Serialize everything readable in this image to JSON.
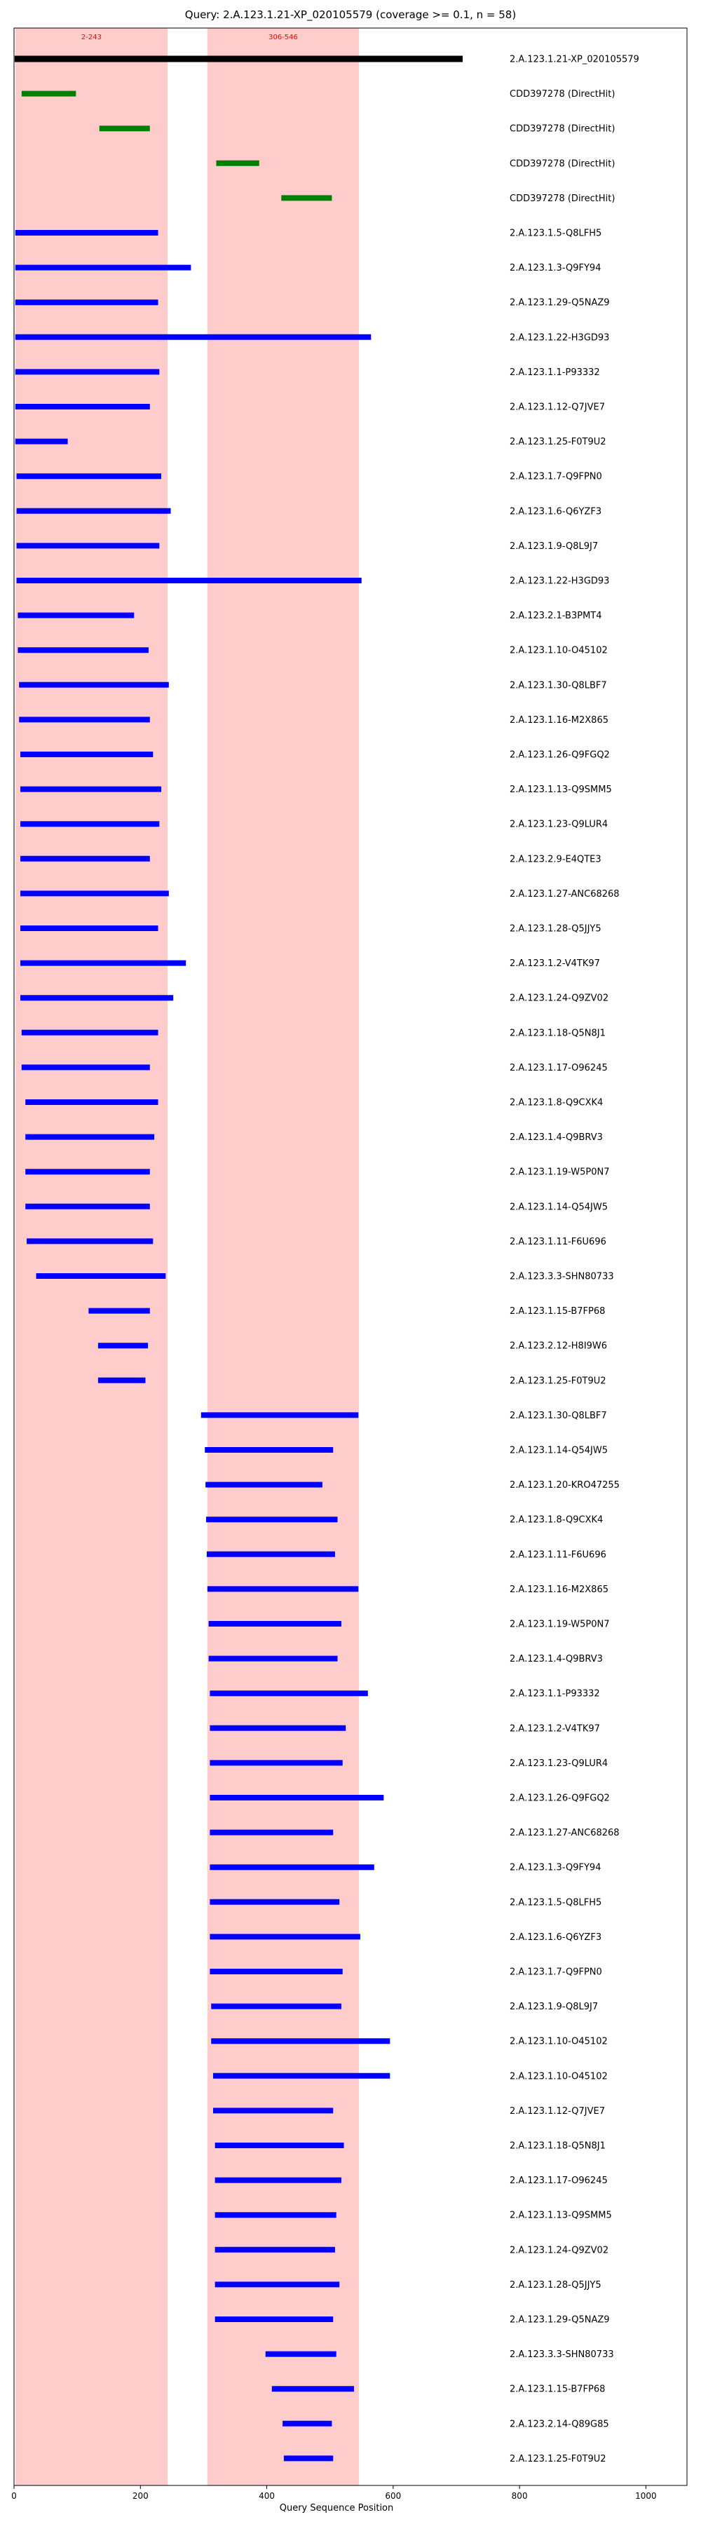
{
  "chart_data": {
    "type": "bar",
    "title": "Query: 2.A.123.1.21-XP_020105579 (coverage >= 0.1, n = 58)",
    "xlabel": "Query Sequence Position",
    "ylabel": "",
    "xlim": [
      0,
      1065
    ],
    "xticks": [
      0,
      200,
      400,
      600,
      800,
      1000
    ],
    "grid": false,
    "regions": [
      {
        "label": "2-243",
        "start": 2,
        "end": 243,
        "color": "#ffcccc",
        "label_color": "#ff0000"
      },
      {
        "label": "306-546",
        "start": 306,
        "end": 546,
        "color": "#ffcccc",
        "label_color": "#ff0000"
      }
    ],
    "colors": {
      "query": "#000000",
      "cdd": "#008000",
      "hit": "#0000ff"
    },
    "rows": [
      {
        "label": "2.A.123.1.21-XP_020105579",
        "start": 1,
        "end": 710,
        "kind": "query"
      },
      {
        "label": "CDD397278 (DirectHit)",
        "start": 12,
        "end": 98,
        "kind": "cdd"
      },
      {
        "label": "CDD397278 (DirectHit)",
        "start": 135,
        "end": 215,
        "kind": "cdd"
      },
      {
        "label": "CDD397278 (DirectHit)",
        "start": 320,
        "end": 388,
        "kind": "cdd"
      },
      {
        "label": "CDD397278 (DirectHit)",
        "start": 423,
        "end": 503,
        "kind": "cdd"
      },
      {
        "label": "2.A.123.1.5-Q8LFH5",
        "start": 2,
        "end": 228,
        "kind": "hit"
      },
      {
        "label": "2.A.123.1.3-Q9FY94",
        "start": 2,
        "end": 280,
        "kind": "hit"
      },
      {
        "label": "2.A.123.1.29-Q5NAZ9",
        "start": 2,
        "end": 228,
        "kind": "hit"
      },
      {
        "label": "2.A.123.1.22-H3GD93",
        "start": 2,
        "end": 565,
        "kind": "hit"
      },
      {
        "label": "2.A.123.1.1-P93332",
        "start": 2,
        "end": 230,
        "kind": "hit"
      },
      {
        "label": "2.A.123.1.12-Q7JVE7",
        "start": 2,
        "end": 215,
        "kind": "hit"
      },
      {
        "label": "2.A.123.1.25-F0T9U2",
        "start": 2,
        "end": 85,
        "kind": "hit"
      },
      {
        "label": "2.A.123.1.7-Q9FPN0",
        "start": 4,
        "end": 233,
        "kind": "hit"
      },
      {
        "label": "2.A.123.1.6-Q6YZF3",
        "start": 4,
        "end": 248,
        "kind": "hit"
      },
      {
        "label": "2.A.123.1.9-Q8L9J7",
        "start": 4,
        "end": 230,
        "kind": "hit"
      },
      {
        "label": "2.A.123.1.22-H3GD93",
        "start": 4,
        "end": 550,
        "kind": "hit"
      },
      {
        "label": "2.A.123.2.1-B3PMT4",
        "start": 6,
        "end": 190,
        "kind": "hit"
      },
      {
        "label": "2.A.123.1.10-O45102",
        "start": 6,
        "end": 213,
        "kind": "hit"
      },
      {
        "label": "2.A.123.1.30-Q8LBF7",
        "start": 8,
        "end": 245,
        "kind": "hit"
      },
      {
        "label": "2.A.123.1.16-M2X865",
        "start": 8,
        "end": 215,
        "kind": "hit"
      },
      {
        "label": "2.A.123.1.26-Q9FGQ2",
        "start": 10,
        "end": 220,
        "kind": "hit"
      },
      {
        "label": "2.A.123.1.13-Q9SMM5",
        "start": 10,
        "end": 233,
        "kind": "hit"
      },
      {
        "label": "2.A.123.1.23-Q9LUR4",
        "start": 10,
        "end": 230,
        "kind": "hit"
      },
      {
        "label": "2.A.123.2.9-E4QTE3",
        "start": 10,
        "end": 215,
        "kind": "hit"
      },
      {
        "label": "2.A.123.1.27-ANC68268",
        "start": 10,
        "end": 245,
        "kind": "hit"
      },
      {
        "label": "2.A.123.1.28-Q5JJY5",
        "start": 10,
        "end": 228,
        "kind": "hit"
      },
      {
        "label": "2.A.123.1.2-V4TK97",
        "start": 10,
        "end": 272,
        "kind": "hit"
      },
      {
        "label": "2.A.123.1.24-Q9ZV02",
        "start": 10,
        "end": 252,
        "kind": "hit"
      },
      {
        "label": "2.A.123.1.18-Q5N8J1",
        "start": 12,
        "end": 228,
        "kind": "hit"
      },
      {
        "label": "2.A.123.1.17-O96245",
        "start": 12,
        "end": 215,
        "kind": "hit"
      },
      {
        "label": "2.A.123.1.8-Q9CXK4",
        "start": 18,
        "end": 228,
        "kind": "hit"
      },
      {
        "label": "2.A.123.1.4-Q9BRV3",
        "start": 18,
        "end": 222,
        "kind": "hit"
      },
      {
        "label": "2.A.123.1.19-W5P0N7",
        "start": 18,
        "end": 215,
        "kind": "hit"
      },
      {
        "label": "2.A.123.1.14-Q54JW5",
        "start": 18,
        "end": 215,
        "kind": "hit"
      },
      {
        "label": "2.A.123.1.11-F6U696",
        "start": 20,
        "end": 220,
        "kind": "hit"
      },
      {
        "label": "2.A.123.3.3-SHN80733",
        "start": 35,
        "end": 240,
        "kind": "hit"
      },
      {
        "label": "2.A.123.1.15-B7FP68",
        "start": 118,
        "end": 215,
        "kind": "hit"
      },
      {
        "label": "2.A.123.2.12-H8I9W6",
        "start": 133,
        "end": 212,
        "kind": "hit"
      },
      {
        "label": "2.A.123.1.25-F0T9U2",
        "start": 133,
        "end": 208,
        "kind": "hit"
      },
      {
        "label": "2.A.123.1.30-Q8LBF7",
        "start": 296,
        "end": 545,
        "kind": "hit"
      },
      {
        "label": "2.A.123.1.14-Q54JW5",
        "start": 302,
        "end": 505,
        "kind": "hit"
      },
      {
        "label": "2.A.123.1.20-KRO47255",
        "start": 303,
        "end": 488,
        "kind": "hit"
      },
      {
        "label": "2.A.123.1.8-Q9CXK4",
        "start": 304,
        "end": 512,
        "kind": "hit"
      },
      {
        "label": "2.A.123.1.11-F6U696",
        "start": 305,
        "end": 508,
        "kind": "hit"
      },
      {
        "label": "2.A.123.1.16-M2X865",
        "start": 306,
        "end": 545,
        "kind": "hit"
      },
      {
        "label": "2.A.123.1.19-W5P0N7",
        "start": 308,
        "end": 518,
        "kind": "hit"
      },
      {
        "label": "2.A.123.1.4-Q9BRV3",
        "start": 308,
        "end": 512,
        "kind": "hit"
      },
      {
        "label": "2.A.123.1.1-P93332",
        "start": 310,
        "end": 560,
        "kind": "hit"
      },
      {
        "label": "2.A.123.1.2-V4TK97",
        "start": 310,
        "end": 525,
        "kind": "hit"
      },
      {
        "label": "2.A.123.1.23-Q9LUR4",
        "start": 310,
        "end": 520,
        "kind": "hit"
      },
      {
        "label": "2.A.123.1.26-Q9FGQ2",
        "start": 310,
        "end": 585,
        "kind": "hit"
      },
      {
        "label": "2.A.123.1.27-ANC68268",
        "start": 310,
        "end": 505,
        "kind": "hit"
      },
      {
        "label": "2.A.123.1.3-Q9FY94",
        "start": 310,
        "end": 570,
        "kind": "hit"
      },
      {
        "label": "2.A.123.1.5-Q8LFH5",
        "start": 310,
        "end": 515,
        "kind": "hit"
      },
      {
        "label": "2.A.123.1.6-Q6YZF3",
        "start": 310,
        "end": 548,
        "kind": "hit"
      },
      {
        "label": "2.A.123.1.7-Q9FPN0",
        "start": 310,
        "end": 520,
        "kind": "hit"
      },
      {
        "label": "2.A.123.1.9-Q8L9J7",
        "start": 312,
        "end": 518,
        "kind": "hit"
      },
      {
        "label": "2.A.123.1.10-O45102",
        "start": 312,
        "end": 595,
        "kind": "hit"
      },
      {
        "label": "2.A.123.1.10-O45102",
        "start": 315,
        "end": 595,
        "kind": "hit"
      },
      {
        "label": "2.A.123.1.12-Q7JVE7",
        "start": 315,
        "end": 505,
        "kind": "hit"
      },
      {
        "label": "2.A.123.1.18-Q5N8J1",
        "start": 318,
        "end": 522,
        "kind": "hit"
      },
      {
        "label": "2.A.123.1.17-O96245",
        "start": 318,
        "end": 518,
        "kind": "hit"
      },
      {
        "label": "2.A.123.1.13-Q9SMM5",
        "start": 318,
        "end": 510,
        "kind": "hit"
      },
      {
        "label": "2.A.123.1.24-Q9ZV02",
        "start": 318,
        "end": 508,
        "kind": "hit"
      },
      {
        "label": "2.A.123.1.28-Q5JJY5",
        "start": 318,
        "end": 515,
        "kind": "hit"
      },
      {
        "label": "2.A.123.1.29-Q5NAZ9",
        "start": 318,
        "end": 505,
        "kind": "hit"
      },
      {
        "label": "2.A.123.3.3-SHN80733",
        "start": 398,
        "end": 510,
        "kind": "hit"
      },
      {
        "label": "2.A.123.1.15-B7FP68",
        "start": 408,
        "end": 538,
        "kind": "hit"
      },
      {
        "label": "2.A.123.2.14-Q89G85",
        "start": 425,
        "end": 503,
        "kind": "hit"
      },
      {
        "label": "2.A.123.1.25-F0T9U2",
        "start": 427,
        "end": 505,
        "kind": "hit"
      }
    ]
  }
}
